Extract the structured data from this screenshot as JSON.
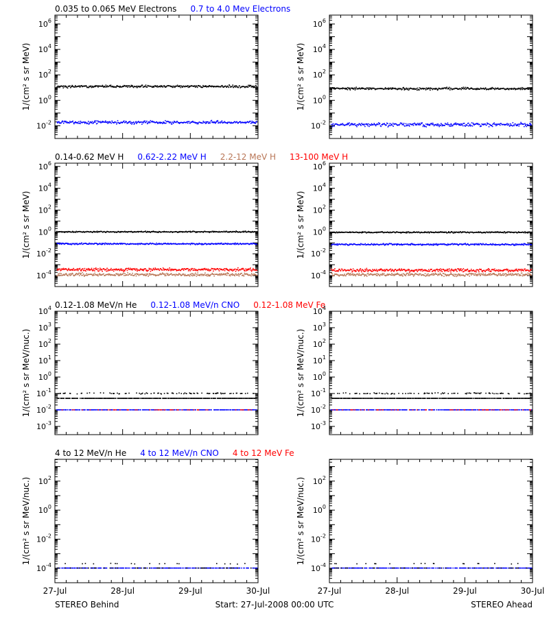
{
  "colors": {
    "black": "#000000",
    "blue": "#0000ff",
    "brown": "#b87555",
    "red": "#ff0000"
  },
  "x_tick_labels": [
    "27-Jul",
    "28-Jul",
    "29-Jul",
    "30-Jul"
  ],
  "footer": {
    "left": "STEREO Behind",
    "center": "Start: 27-Jul-2008 00:00 UTC",
    "right": "STEREO Ahead"
  },
  "chart_data": [
    {
      "type": "scatter",
      "row": 0,
      "legend": [
        {
          "text": "0.035 to 0.065 MeV Electrons",
          "color": "#000000"
        },
        {
          "text": "0.7 to 4.0 Mev Electrons",
          "color": "#0000ff"
        }
      ],
      "ylabel": "1/(cm² s sr MeV)",
      "yscale": "log",
      "ylim_exp": [
        -3,
        6.7
      ],
      "ytick_exponents": [
        -2,
        0,
        2,
        4,
        6
      ],
      "xlim": [
        "27-Jul-2008",
        "30-Jul-2008"
      ],
      "panels": [
        {
          "spacecraft": "STEREO Behind",
          "series": [
            {
              "legend_index": 0,
              "color": "#000000",
              "level": 12,
              "scatter_dex": 0.08,
              "spread": 1
            },
            {
              "legend_index": 1,
              "color": "#0000ff",
              "level": 0.018,
              "scatter_dex": 0.1,
              "spread": 1
            }
          ]
        },
        {
          "spacecraft": "STEREO Ahead",
          "series": [
            {
              "legend_index": 0,
              "color": "#000000",
              "level": 8,
              "scatter_dex": 0.08,
              "spread": 1
            },
            {
              "legend_index": 1,
              "color": "#0000ff",
              "level": 0.012,
              "scatter_dex": 0.12,
              "spread": 1
            }
          ]
        }
      ]
    },
    {
      "type": "scatter",
      "row": 1,
      "legend": [
        {
          "text": "0.14-0.62 MeV H",
          "color": "#000000"
        },
        {
          "text": "0.62-2.22 MeV H",
          "color": "#0000ff"
        },
        {
          "text": "2.2-12 MeV H",
          "color": "#b87555"
        },
        {
          "text": "13-100 MeV H",
          "color": "#ff0000"
        }
      ],
      "ylabel": "1/(cm² s sr MeV)",
      "yscale": "log",
      "ylim_exp": [
        -5,
        6.3
      ],
      "ytick_exponents": [
        -4,
        -2,
        0,
        2,
        4,
        6
      ],
      "xlim": [
        "27-Jul-2008",
        "30-Jul-2008"
      ],
      "panels": [
        {
          "spacecraft": "STEREO Behind",
          "series": [
            {
              "legend_index": 0,
              "color": "#000000",
              "level": 1.0,
              "scatter_dex": 0.05,
              "spread": 1
            },
            {
              "legend_index": 1,
              "color": "#0000ff",
              "level": 0.08,
              "scatter_dex": 0.06,
              "spread": 1
            },
            {
              "legend_index": 2,
              "color": "#b87555",
              "level": 0.00012,
              "scatter_dex": 0.12,
              "spread": 1
            },
            {
              "legend_index": 3,
              "color": "#ff0000",
              "level": 0.00035,
              "scatter_dex": 0.12,
              "spread": 1
            }
          ]
        },
        {
          "spacecraft": "STEREO Ahead",
          "series": [
            {
              "legend_index": 0,
              "color": "#000000",
              "level": 0.9,
              "scatter_dex": 0.05,
              "spread": 1
            },
            {
              "legend_index": 1,
              "color": "#0000ff",
              "level": 0.07,
              "scatter_dex": 0.06,
              "spread": 1
            },
            {
              "legend_index": 2,
              "color": "#b87555",
              "level": 0.00012,
              "scatter_dex": 0.12,
              "spread": 1
            },
            {
              "legend_index": 3,
              "color": "#ff0000",
              "level": 0.0003,
              "scatter_dex": 0.12,
              "spread": 1
            }
          ]
        }
      ]
    },
    {
      "type": "scatter",
      "row": 2,
      "legend": [
        {
          "text": "0.12-1.08 MeV/n He",
          "color": "#000000"
        },
        {
          "text": "0.12-1.08 MeV/n CNO",
          "color": "#0000ff"
        },
        {
          "text": "0.12-1.08 MeV Fe",
          "color": "#ff0000"
        }
      ],
      "ylabel": "1/(cm² s sr MeV/nuc.)",
      "yscale": "log",
      "ylim_exp": [
        -3.5,
        4
      ],
      "ytick_exponents": [
        -3,
        -2,
        -1,
        0,
        1,
        2,
        3,
        4
      ],
      "xlim": [
        "27-Jul-2008",
        "30-Jul-2008"
      ],
      "panels": [
        {
          "spacecraft": "STEREO Behind",
          "series": [
            {
              "legend_index": 0,
              "color": "#000000",
              "level": 0.05,
              "scatter_dex": 0,
              "spread": 0.85
            },
            {
              "legend_index": 0,
              "color": "#000000",
              "level": 0.1,
              "scatter_dex": 0.03,
              "spread": 0.3
            },
            {
              "legend_index": 1,
              "color": "#0000ff",
              "level": 0.01,
              "scatter_dex": 0,
              "spread": 0.8
            },
            {
              "legend_index": 2,
              "color": "#ff0000",
              "level": 0.01,
              "scatter_dex": 0,
              "spread": 0.15
            }
          ]
        },
        {
          "spacecraft": "STEREO Ahead",
          "series": [
            {
              "legend_index": 0,
              "color": "#000000",
              "level": 0.05,
              "scatter_dex": 0,
              "spread": 0.85
            },
            {
              "legend_index": 0,
              "color": "#000000",
              "level": 0.1,
              "scatter_dex": 0.03,
              "spread": 0.3
            },
            {
              "legend_index": 1,
              "color": "#0000ff",
              "level": 0.01,
              "scatter_dex": 0,
              "spread": 0.8
            },
            {
              "legend_index": 2,
              "color": "#ff0000",
              "level": 0.01,
              "scatter_dex": 0,
              "spread": 0.15
            }
          ]
        }
      ]
    },
    {
      "type": "scatter",
      "row": 3,
      "legend": [
        {
          "text": "4 to 12 MeV/n He",
          "color": "#000000"
        },
        {
          "text": "4 to 12 MeV/n CNO",
          "color": "#0000ff"
        },
        {
          "text": "4 to 12 MeV Fe",
          "color": "#ff0000"
        }
      ],
      "ylabel": "1/(cm² s sr MeV/nuc.)",
      "yscale": "log",
      "ylim_exp": [
        -5,
        3.5
      ],
      "ytick_exponents": [
        -4,
        -2,
        0,
        2
      ],
      "xlim": [
        "27-Jul-2008",
        "30-Jul-2008"
      ],
      "panels": [
        {
          "spacecraft": "STEREO Behind",
          "series": [
            {
              "legend_index": 1,
              "color": "#0000ff",
              "level": 0.0001,
              "scatter_dex": 0,
              "spread": 0.6
            },
            {
              "legend_index": 0,
              "color": "#000000",
              "level": 0.0001,
              "scatter_dex": 0,
              "spread": 0.15
            },
            {
              "legend_index": 0,
              "color": "#000000",
              "level": 0.0002,
              "scatter_dex": 0.02,
              "spread": 0.05
            }
          ]
        },
        {
          "spacecraft": "STEREO Ahead",
          "series": [
            {
              "legend_index": 1,
              "color": "#0000ff",
              "level": 0.0001,
              "scatter_dex": 0,
              "spread": 0.6
            },
            {
              "legend_index": 0,
              "color": "#000000",
              "level": 0.0001,
              "scatter_dex": 0,
              "spread": 0.1
            },
            {
              "legend_index": 0,
              "color": "#000000",
              "level": 0.0002,
              "scatter_dex": 0.02,
              "spread": 0.05
            }
          ]
        }
      ]
    }
  ]
}
